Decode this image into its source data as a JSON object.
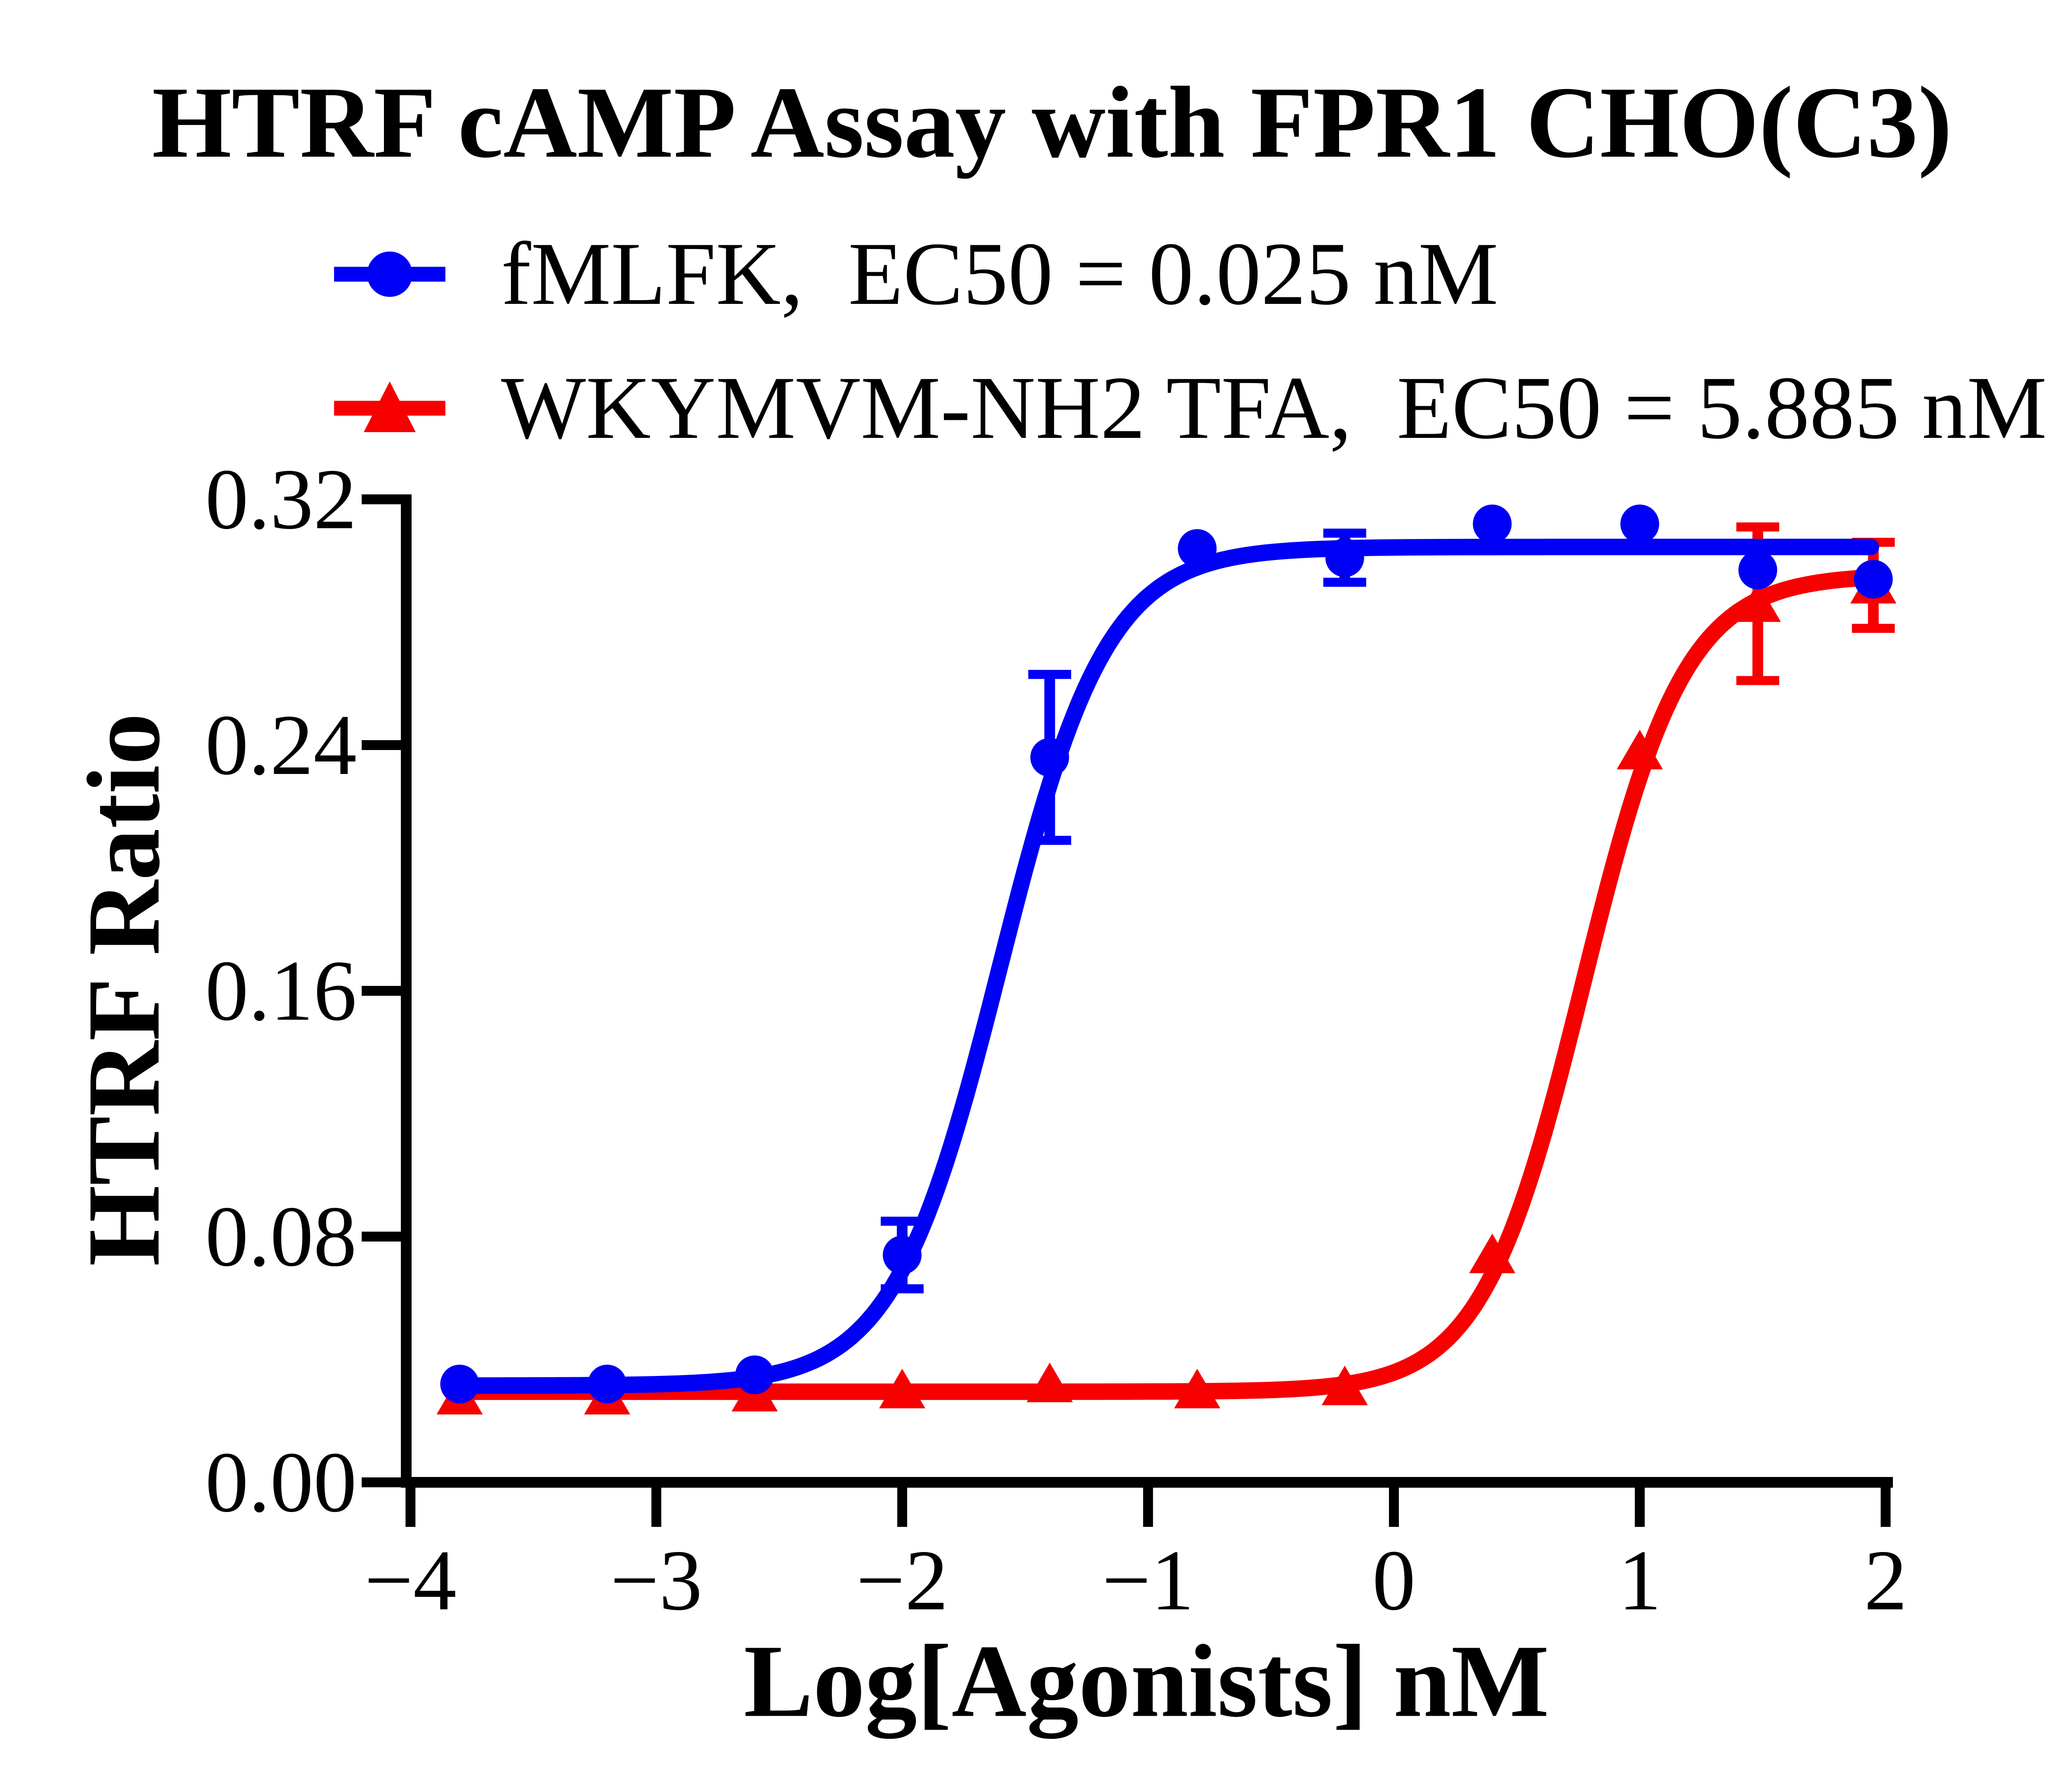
{
  "chart_data": {
    "type": "scatter",
    "title": "HTRF cAMP Assay with FPR1 CHO(C3)",
    "xlabel": "Log[Agonists] nM",
    "ylabel": "HTRF Ratio",
    "xlim": [
      -4,
      2
    ],
    "ylim": [
      0,
      0.32
    ],
    "grid": false,
    "legend_position": "top-left-above-plot",
    "x_ticks": [
      -4,
      -3,
      -2,
      -1,
      0,
      1,
      2
    ],
    "x_tick_labels": [
      "−4",
      "−3",
      "−2",
      "−1",
      "0",
      "1",
      "2"
    ],
    "y_ticks": [
      0,
      0.08,
      0.16,
      0.24,
      0.32
    ],
    "y_tick_labels": [
      "0.00",
      "0.08",
      "0.16",
      "0.24",
      "0.32"
    ],
    "axis_color": "#000000",
    "series": [
      {
        "name": "fMLFK",
        "legend_label": "fMLFK,  EC50 = 0.025 nM",
        "ec50_nm": 0.025,
        "color": "#0000f6",
        "marker": "circle",
        "x": [
          -3.8,
          -3.2,
          -2.6,
          -2.0,
          -1.4,
          -0.8,
          -0.2,
          0.4,
          1.0,
          1.48,
          1.95
        ],
        "y": [
          0.032,
          0.032,
          0.035,
          0.074,
          0.236,
          0.304,
          0.301,
          0.312,
          0.312,
          0.297,
          0.294
        ],
        "yerr": [
          0,
          0,
          0,
          0.011,
          0.027,
          0,
          0.008,
          0,
          0,
          0,
          0
        ],
        "fit": {
          "bottom": 0.0315,
          "top": 0.3045,
          "log_ec50": -1.602,
          "hill": 2.0
        }
      },
      {
        "name": "WKYMVM-NH2 TFA",
        "legend_label": "WKYMVM-NH2 TFA,  EC50 = 5.885 nM",
        "ec50_nm": 5.885,
        "color": "#f60000",
        "marker": "triangle",
        "x": [
          -3.8,
          -3.2,
          -2.6,
          -2.0,
          -1.4,
          -0.8,
          -0.2,
          0.4,
          1.0,
          1.48,
          1.95
        ],
        "y": [
          0.028,
          0.028,
          0.029,
          0.03,
          0.032,
          0.03,
          0.031,
          0.074,
          0.238,
          0.286,
          0.292
        ],
        "yerr": [
          0,
          0,
          0,
          0,
          0,
          0,
          0,
          0,
          0,
          0.025,
          0.014
        ],
        "fit": {
          "bottom": 0.0295,
          "top": 0.2955,
          "log_ec50": 0.77,
          "hill": 2.1
        }
      }
    ]
  }
}
